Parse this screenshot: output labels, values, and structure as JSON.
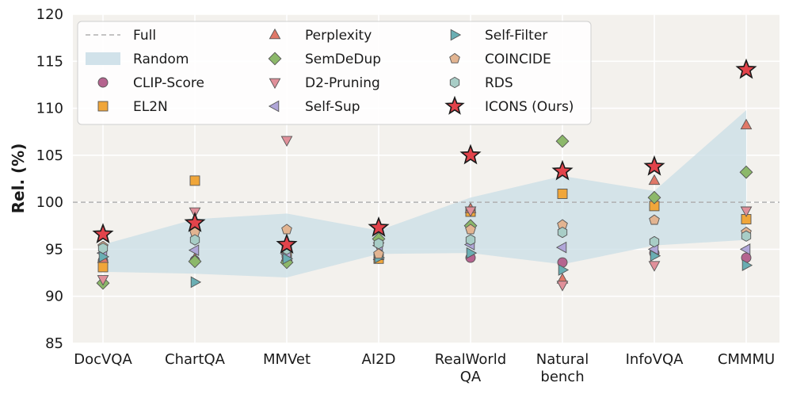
{
  "chart_data": {
    "type": "scatter",
    "title": "",
    "xlabel": "",
    "ylabel": "Rel. (%)",
    "categories": [
      "DocVQA",
      "ChartQA",
      "MMVet",
      "AI2D",
      "RealWorld\nQA",
      "Natural\nbench",
      "InfoVQA",
      "CMMMU"
    ],
    "ylim": [
      85,
      120
    ],
    "yticks": [
      85,
      90,
      95,
      100,
      105,
      110,
      115,
      120
    ],
    "grid": true,
    "legend_position": "top-left",
    "full_line": {
      "name": "Full",
      "value": 100,
      "color": "#b0b0b0"
    },
    "random_band": {
      "name": "Random",
      "color": "#c9dde6",
      "upper": [
        95.5,
        98.2,
        98.8,
        97.0,
        100.5,
        102.8,
        101.2,
        109.8
      ],
      "lower": [
        92.6,
        92.4,
        92.0,
        94.5,
        94.6,
        93.4,
        95.4,
        96.0
      ]
    },
    "series": [
      {
        "name": "CLIP-Score",
        "marker": "circle",
        "color": "#b5648f",
        "values": [
          93.8,
          93.8,
          94.2,
          94.0,
          94.1,
          93.6,
          94.6,
          94.1
        ]
      },
      {
        "name": "EL2N",
        "marker": "square",
        "color": "#f0a63a",
        "values": [
          93.1,
          102.3,
          94.8,
          94.0,
          99.0,
          100.9,
          99.6,
          98.2
        ]
      },
      {
        "name": "Perplexity",
        "marker": "triangle-up",
        "color": "#e07868",
        "values": [
          94.0,
          94.0,
          94.2,
          94.3,
          99.3,
          91.8,
          102.3,
          108.2
        ]
      },
      {
        "name": "SemDeDup",
        "marker": "diamond",
        "color": "#8cb86a",
        "values": [
          91.4,
          93.7,
          93.6,
          96.1,
          97.5,
          106.5,
          100.5,
          103.2
        ]
      },
      {
        "name": "D2-Pruning",
        "marker": "triangle-down",
        "color": "#e0909a",
        "values": [
          91.8,
          99.0,
          106.6,
          95.3,
          99.1,
          91.2,
          93.3,
          99.1
        ]
      },
      {
        "name": "Self-Sup",
        "marker": "triangle-left",
        "color": "#b0a6d8",
        "values": [
          94.6,
          94.9,
          94.5,
          95.4,
          95.5,
          95.2,
          95.0,
          95.0
        ]
      },
      {
        "name": "Self-Filter",
        "marker": "triangle-right",
        "color": "#6aaeb3",
        "values": [
          94.2,
          91.5,
          94.0,
          94.1,
          94.6,
          92.8,
          94.3,
          93.3
        ]
      },
      {
        "name": "COINCIDE",
        "marker": "pentagon",
        "color": "#e2b491",
        "values": [
          95.3,
          96.8,
          97.1,
          94.5,
          97.1,
          97.6,
          98.1,
          96.8
        ]
      },
      {
        "name": "RDS",
        "marker": "hexagon",
        "color": "#a8cdc6",
        "values": [
          95.1,
          96.0,
          95.0,
          95.6,
          96.0,
          96.8,
          95.8,
          96.4
        ]
      },
      {
        "name": "ICONS (Ours)",
        "marker": "star",
        "color": "#e2434b",
        "values": [
          96.6,
          97.8,
          95.5,
          97.3,
          105.0,
          103.3,
          103.8,
          114.1
        ]
      }
    ]
  }
}
